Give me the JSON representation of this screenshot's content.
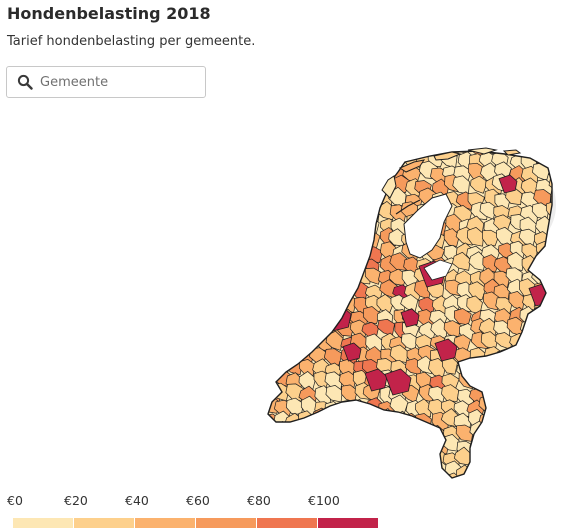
{
  "header": {
    "title": "Hondenbelasting 2018",
    "subtitle": "Tarief hondenbelasting per gemeente."
  },
  "search": {
    "placeholder": "Gemeente",
    "icon": "search-icon"
  },
  "colors": {
    "border": "#1f1f1f",
    "ghost": "#ececec",
    "water": "#ffffff"
  },
  "legend": {
    "labels": [
      "€0",
      "€20",
      "€40",
      "€60",
      "€80",
      "€100"
    ],
    "bins": [
      {
        "min": 0,
        "max": 20,
        "color": "#fde7b4"
      },
      {
        "min": 20,
        "max": 40,
        "color": "#fdd08c"
      },
      {
        "min": 40,
        "max": 60,
        "color": "#fbb26e"
      },
      {
        "min": 60,
        "max": 80,
        "color": "#f69a5c"
      },
      {
        "min": 80,
        "max": 100,
        "color": "#ef7650"
      },
      {
        "min": 100,
        "max": 120,
        "color": "#c2234a"
      }
    ]
  }
}
